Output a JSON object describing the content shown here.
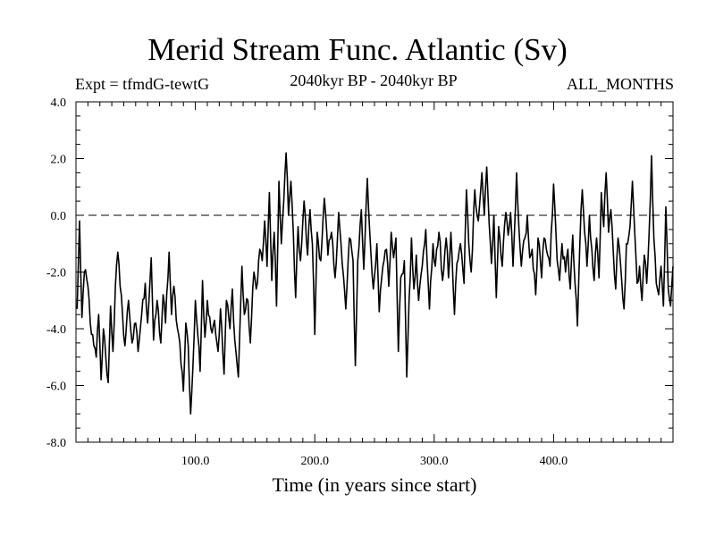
{
  "chart_data": {
    "type": "line",
    "title": "Merid Stream Func. Atlantic (Sv)",
    "subtitle_left": "Expt = tfmdG-tewtG",
    "subtitle_center": "2040kyr BP - 2040kyr BP",
    "subtitle_right": "ALL_MONTHS",
    "xlabel": "Time (in years since start)",
    "ylabel": "",
    "xlim": [
      0,
      500
    ],
    "ylim": [
      -8,
      4
    ],
    "x_ticks": [
      100,
      200,
      300,
      400
    ],
    "x_tick_labels": [
      "100.0",
      "200.0",
      "300.0",
      "400.0"
    ],
    "y_ticks": [
      4,
      2,
      0,
      -2,
      -4,
      -6,
      -8
    ],
    "y_tick_labels": [
      "4.0",
      "2.0",
      "0.0",
      "-2.0",
      "-4.0",
      "-6.0",
      "-8.0"
    ],
    "reference_line": {
      "y": 0,
      "style": "dashed"
    },
    "series": [
      {
        "name": "Merid Stream Func. Atlantic",
        "x_start": 1,
        "x_step": 1,
        "anchors": [
          [
            1,
            -3.3
          ],
          [
            3,
            -0.2
          ],
          [
            5,
            -3.6
          ],
          [
            7,
            -2.0
          ],
          [
            10,
            -2.5
          ],
          [
            13,
            -4.2
          ],
          [
            15,
            -4.6
          ],
          [
            17,
            -5.0
          ],
          [
            19,
            -3.5
          ],
          [
            21,
            -5.8
          ],
          [
            23,
            -4.0
          ],
          [
            25,
            -5.0
          ],
          [
            27,
            -5.9
          ],
          [
            29,
            -3.2
          ],
          [
            31,
            -4.8
          ],
          [
            33,
            -2.5
          ],
          [
            35,
            -1.3
          ],
          [
            37,
            -2.5
          ],
          [
            39,
            -3.5
          ],
          [
            41,
            -4.6
          ],
          [
            44,
            -3.0
          ],
          [
            47,
            -4.5
          ],
          [
            50,
            -3.8
          ],
          [
            52,
            -4.8
          ],
          [
            55,
            -3.5
          ],
          [
            58,
            -2.4
          ],
          [
            60,
            -3.8
          ],
          [
            63,
            -1.5
          ],
          [
            65,
            -4.4
          ],
          [
            68,
            -3.0
          ],
          [
            71,
            -4.5
          ],
          [
            73,
            -2.8
          ],
          [
            75,
            -3.8
          ],
          [
            78,
            -1.3
          ],
          [
            80,
            -3.5
          ],
          [
            82,
            -2.5
          ],
          [
            85,
            -4.0
          ],
          [
            87,
            -4.5
          ],
          [
            90,
            -6.2
          ],
          [
            92,
            -3.8
          ],
          [
            94,
            -4.6
          ],
          [
            96,
            -7.0
          ],
          [
            98,
            -5.3
          ],
          [
            100,
            -3.0
          ],
          [
            102,
            -4.2
          ],
          [
            104,
            -5.5
          ],
          [
            106,
            -2.3
          ],
          [
            108,
            -4.3
          ],
          [
            110,
            -3.0
          ],
          [
            113,
            -4.0
          ],
          [
            116,
            -3.7
          ],
          [
            119,
            -4.8
          ],
          [
            121,
            -3.3
          ],
          [
            124,
            -5.6
          ],
          [
            126,
            -3.0
          ],
          [
            129,
            -4.0
          ],
          [
            131,
            -2.6
          ],
          [
            133,
            -4.4
          ],
          [
            136,
            -5.7
          ],
          [
            139,
            -1.8
          ],
          [
            141,
            -3.5
          ],
          [
            144,
            -3.0
          ],
          [
            146,
            -4.5
          ],
          [
            149,
            -2.0
          ],
          [
            151,
            -2.6
          ],
          [
            154,
            -1.2
          ],
          [
            156,
            -1.6
          ],
          [
            158,
            -0.2
          ],
          [
            160,
            -1.8
          ],
          [
            162,
            0.8
          ],
          [
            164,
            -2.3
          ],
          [
            166,
            -0.6
          ],
          [
            168,
            -3.2
          ],
          [
            170,
            1.2
          ],
          [
            172,
            -1.0
          ],
          [
            174,
            0.5
          ],
          [
            176,
            2.2
          ],
          [
            178,
            0.0
          ],
          [
            180,
            1.2
          ],
          [
            182,
            -0.6
          ],
          [
            184,
            -2.9
          ],
          [
            186,
            -0.4
          ],
          [
            188,
            -1.6
          ],
          [
            191,
            0.5
          ],
          [
            194,
            -1.4
          ],
          [
            196,
            0.2
          ],
          [
            198,
            -1.0
          ],
          [
            200,
            -4.2
          ],
          [
            202,
            -0.6
          ],
          [
            205,
            -1.6
          ],
          [
            208,
            0.6
          ],
          [
            211,
            -1.4
          ],
          [
            214,
            -0.6
          ],
          [
            217,
            -2.2
          ],
          [
            220,
            0.1
          ],
          [
            223,
            -1.7
          ],
          [
            226,
            -3.3
          ],
          [
            229,
            -0.8
          ],
          [
            232,
            -1.6
          ],
          [
            234,
            -5.3
          ],
          [
            236,
            -1.6
          ],
          [
            239,
            0.2
          ],
          [
            241,
            -1.9
          ],
          [
            244,
            1.3
          ],
          [
            246,
            -0.6
          ],
          [
            249,
            -2.6
          ],
          [
            252,
            -1.0
          ],
          [
            254,
            -3.4
          ],
          [
            257,
            -1.8
          ],
          [
            260,
            -1.2
          ],
          [
            262,
            -2.5
          ],
          [
            264,
            -0.6
          ],
          [
            266,
            -1.5
          ],
          [
            268,
            -0.8
          ],
          [
            270,
            -4.8
          ],
          [
            272,
            -2.2
          ],
          [
            275,
            -1.6
          ],
          [
            277,
            -5.7
          ],
          [
            279,
            -3.0
          ],
          [
            281,
            -0.8
          ],
          [
            283,
            -2.6
          ],
          [
            285,
            -1.4
          ],
          [
            287,
            -3.0
          ],
          [
            290,
            -1.8
          ],
          [
            293,
            -0.5
          ],
          [
            296,
            -3.3
          ],
          [
            299,
            -1.0
          ],
          [
            301,
            -1.8
          ],
          [
            304,
            -0.6
          ],
          [
            307,
            -2.3
          ],
          [
            310,
            -0.8
          ],
          [
            312,
            -2.2
          ],
          [
            314,
            -0.6
          ],
          [
            317,
            -3.5
          ],
          [
            319,
            -1.7
          ],
          [
            322,
            -1.0
          ],
          [
            325,
            -2.4
          ],
          [
            327,
            0.9
          ],
          [
            329,
            -1.0
          ],
          [
            331,
            -2.0
          ],
          [
            334,
            0.9
          ],
          [
            337,
            -0.2
          ],
          [
            340,
            1.5
          ],
          [
            342,
            0.0
          ],
          [
            344,
            1.7
          ],
          [
            346,
            -0.3
          ],
          [
            348,
            -1.7
          ],
          [
            350,
            0.0
          ],
          [
            352,
            -2.9
          ],
          [
            354,
            -0.4
          ],
          [
            357,
            -1.8
          ],
          [
            360,
            0.1
          ],
          [
            362,
            -0.7
          ],
          [
            364,
            0.1
          ],
          [
            366,
            -1.8
          ],
          [
            369,
            1.5
          ],
          [
            371,
            -0.5
          ],
          [
            373,
            -1.8
          ],
          [
            376,
            -0.8
          ],
          [
            378,
            0.0
          ],
          [
            380,
            -1.5
          ],
          [
            382,
            -1.2
          ],
          [
            385,
            -2.8
          ],
          [
            387,
            -0.8
          ],
          [
            390,
            -2.2
          ],
          [
            392,
            -0.8
          ],
          [
            395,
            -1.4
          ],
          [
            397,
            -1.8
          ],
          [
            400,
            1.1
          ],
          [
            403,
            -1.6
          ],
          [
            405,
            -2.3
          ],
          [
            407,
            -1.0
          ],
          [
            410,
            -2.0
          ],
          [
            412,
            -1.2
          ],
          [
            414,
            -2.6
          ],
          [
            416,
            -0.7
          ],
          [
            418,
            -2.4
          ],
          [
            420,
            -3.9
          ],
          [
            422,
            -1.0
          ],
          [
            424,
            0.9
          ],
          [
            426,
            -0.6
          ],
          [
            428,
            -1.8
          ],
          [
            430,
            0.0
          ],
          [
            432,
            -1.2
          ],
          [
            434,
            -2.3
          ],
          [
            436,
            -0.8
          ],
          [
            438,
            -2.2
          ],
          [
            440,
            0.8
          ],
          [
            442,
            -0.4
          ],
          [
            444,
            1.5
          ],
          [
            446,
            -0.6
          ],
          [
            448,
            0.2
          ],
          [
            450,
            -1.3
          ],
          [
            452,
            -2.6
          ],
          [
            454,
            -0.8
          ],
          [
            457,
            -2.3
          ],
          [
            459,
            -3.3
          ],
          [
            461,
            -1.0
          ],
          [
            464,
            -0.4
          ],
          [
            466,
            1.2
          ],
          [
            468,
            -0.6
          ],
          [
            470,
            -2.4
          ],
          [
            472,
            -1.8
          ],
          [
            474,
            -3.0
          ],
          [
            476,
            -1.4
          ],
          [
            478,
            -2.4
          ],
          [
            480,
            -0.6
          ],
          [
            482,
            2.1
          ],
          [
            484,
            -0.8
          ],
          [
            486,
            -2.4
          ],
          [
            488,
            -2.8
          ],
          [
            490,
            -1.8
          ],
          [
            492,
            -3.2
          ],
          [
            494,
            0.3
          ],
          [
            496,
            -2.6
          ],
          [
            498,
            -3.2
          ],
          [
            500,
            -1.8
          ]
        ]
      }
    ]
  }
}
